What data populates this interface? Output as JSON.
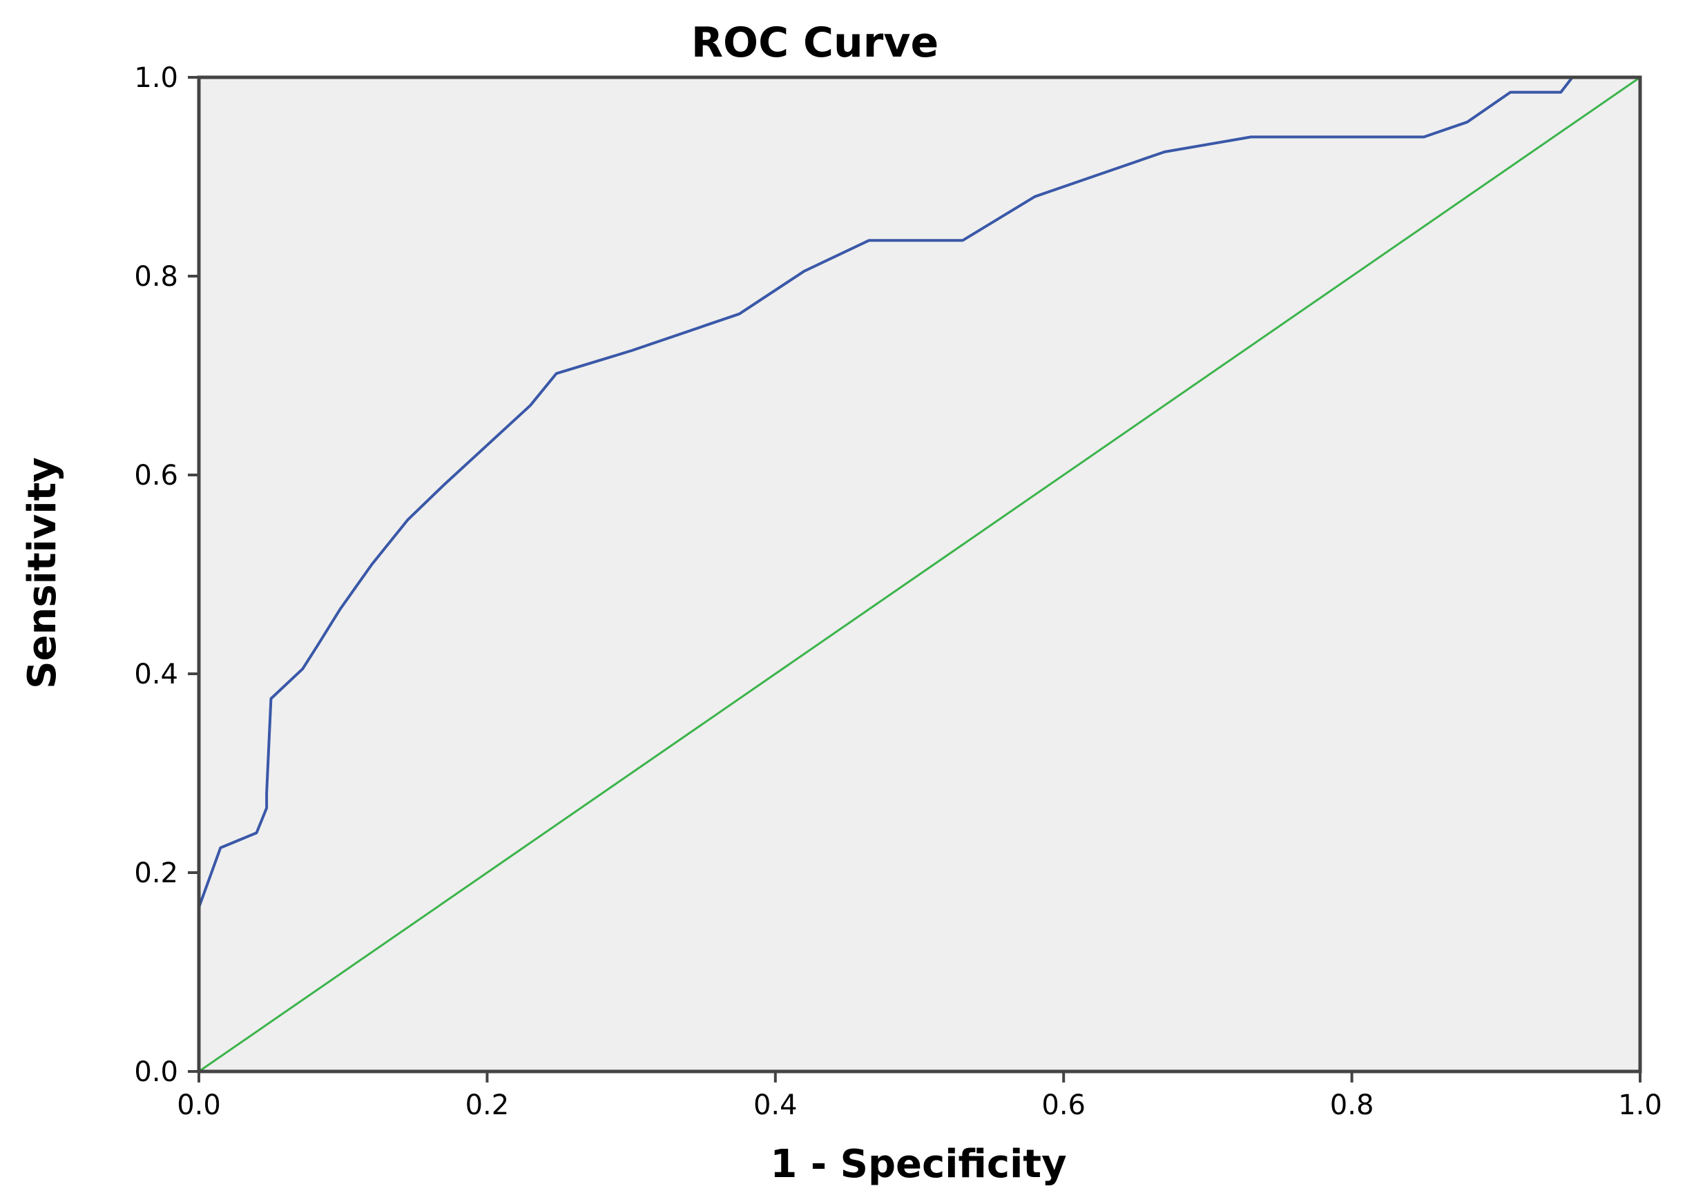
{
  "chart_data": {
    "type": "line",
    "title": "ROC Curve",
    "xlabel": "1 - Specificity",
    "ylabel": "Sensitivity",
    "xlim": [
      0.0,
      1.0
    ],
    "ylim": [
      0.0,
      1.0
    ],
    "x_ticks": [
      "0.0",
      "0.2",
      "0.4",
      "0.6",
      "0.8",
      "1.0"
    ],
    "y_ticks": [
      "0.0",
      "0.2",
      "0.4",
      "0.6",
      "0.8",
      "1.0"
    ],
    "grid": false,
    "legend": "none",
    "series": [
      {
        "color": "#3a58a8",
        "x": [
          0.0,
          0.0,
          0.015,
          0.04,
          0.047,
          0.047,
          0.05,
          0.072,
          0.083,
          0.098,
          0.12,
          0.145,
          0.17,
          0.2,
          0.23,
          0.248,
          0.3,
          0.375,
          0.42,
          0.465,
          0.53,
          0.58,
          0.62,
          0.67,
          0.73,
          0.8,
          0.85,
          0.88,
          0.91,
          0.945,
          0.953,
          1.0
        ],
        "y": [
          0.0,
          0.165,
          0.225,
          0.24,
          0.265,
          0.28,
          0.375,
          0.405,
          0.43,
          0.465,
          0.51,
          0.555,
          0.59,
          0.63,
          0.67,
          0.702,
          0.725,
          0.762,
          0.805,
          0.836,
          0.836,
          0.88,
          0.9,
          0.925,
          0.94,
          0.94,
          0.94,
          0.955,
          0.985,
          0.985,
          1.0,
          1.0
        ]
      },
      {
        "color": "#3cb44b",
        "x": [
          0.0,
          1.0
        ],
        "y": [
          0.0,
          1.0
        ]
      }
    ],
    "colors": {
      "plot_background": "#efefef",
      "frame": "#444444"
    }
  }
}
